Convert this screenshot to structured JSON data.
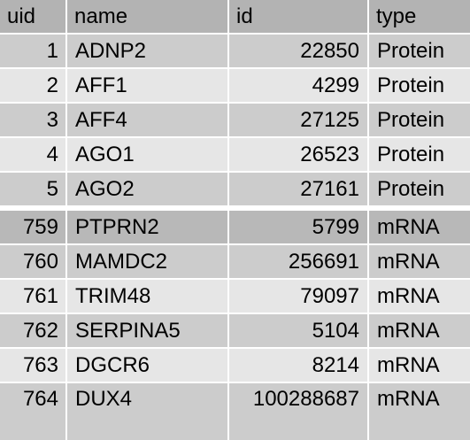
{
  "columns": {
    "uid": "uid",
    "name": "name",
    "id": "id",
    "type": "type"
  },
  "rows": [
    {
      "uid": "1",
      "name": "ADNP2",
      "id": "22850",
      "type": "Protein"
    },
    {
      "uid": "2",
      "name": "AFF1",
      "id": "4299",
      "type": "Protein"
    },
    {
      "uid": "3",
      "name": "AFF4",
      "id": "27125",
      "type": "Protein"
    },
    {
      "uid": "4",
      "name": "AGO1",
      "id": "26523",
      "type": "Protein"
    },
    {
      "uid": "5",
      "name": "AGO2",
      "id": "27161",
      "type": "Protein"
    },
    {
      "uid": "759",
      "name": "PTPRN2",
      "id": "5799",
      "type": "mRNA"
    },
    {
      "uid": "760",
      "name": "MAMDC2",
      "id": "256691",
      "type": "mRNA"
    },
    {
      "uid": "761",
      "name": "TRIM48",
      "id": "79097",
      "type": "mRNA"
    },
    {
      "uid": "762",
      "name": "SERPINA5",
      "id": "5104",
      "type": "mRNA"
    },
    {
      "uid": "763",
      "name": "DGCR6",
      "id": "8214",
      "type": "mRNA"
    },
    {
      "uid": "764",
      "name": "DUX4",
      "id": "100288687",
      "type": "mRNA"
    }
  ]
}
